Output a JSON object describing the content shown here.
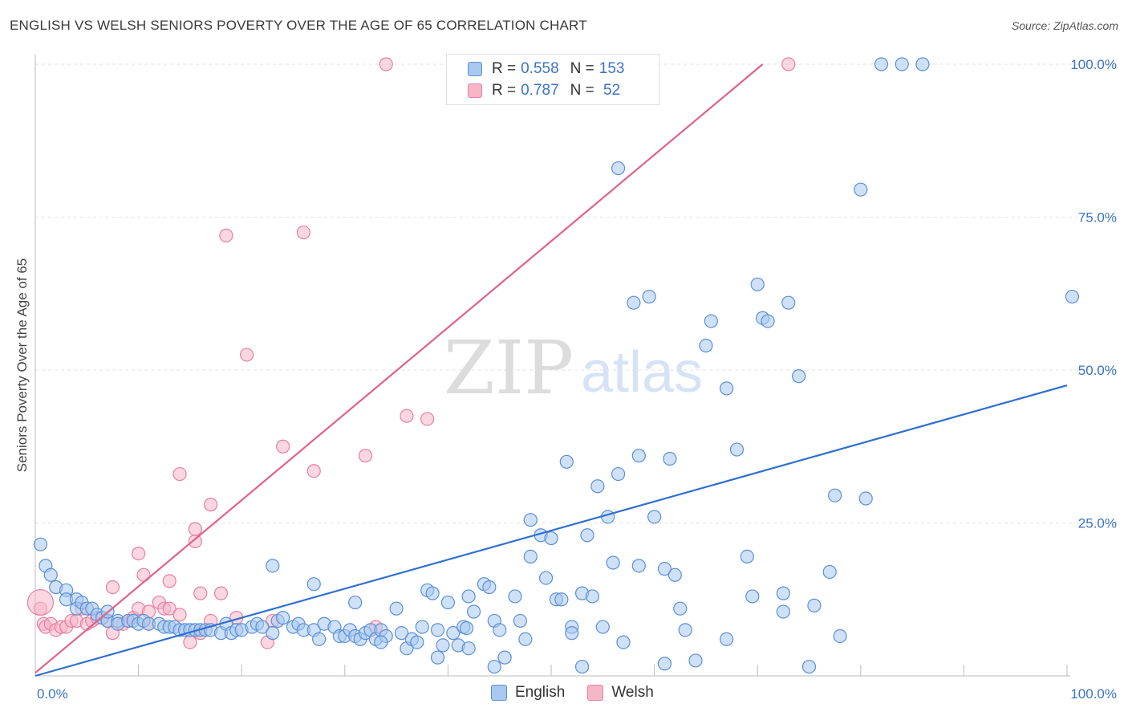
{
  "title": "ENGLISH VS WELSH SENIORS POVERTY OVER THE AGE OF 65 CORRELATION CHART",
  "source": "Source: ZipAtlas.com",
  "watermark": {
    "zip": "ZIP",
    "atlas": "atlas"
  },
  "legend": {
    "rows": [
      {
        "r_label": "R = ",
        "r_value": "0.558",
        "n_label": "N = ",
        "n_value": "153"
      },
      {
        "r_label": "R = ",
        "r_value": "0.787",
        "n_label": "N = ",
        "n_value": " 52"
      }
    ]
  },
  "bottom_legend": {
    "english": "English",
    "welsh": "Welsh"
  },
  "colors": {
    "english_fill": "#a8c8f0",
    "english_stroke": "#5b8fd6",
    "english_line": "#2f6fce",
    "welsh_fill": "#f7b6c8",
    "welsh_stroke": "#e87fa0",
    "welsh_line": "#e0628a",
    "tick_text": "#3b73c4",
    "grid": "#e2e2e2"
  },
  "chart_data": {
    "type": "scatter",
    "title": "ENGLISH VS WELSH SENIORS POVERTY OVER THE AGE OF 65 CORRELATION CHART",
    "xlabel": "",
    "ylabel": "Seniors Poverty Over the Age of 65",
    "xlim": [
      0,
      100
    ],
    "ylim": [
      0,
      100
    ],
    "x_tick_labels": [
      "0.0%",
      "100.0%"
    ],
    "y_ticks": [
      25,
      50,
      75,
      100
    ],
    "y_tick_labels": [
      "25.0%",
      "50.0%",
      "75.0%",
      "100.0%"
    ],
    "grid": true,
    "series": [
      {
        "name": "English",
        "trend": [
          [
            0,
            0
          ],
          [
            100,
            47.5
          ]
        ],
        "points": [
          [
            0.5,
            21.5
          ],
          [
            1,
            18
          ],
          [
            1.5,
            16.5
          ],
          [
            2,
            14.5
          ],
          [
            3,
            14
          ],
          [
            3,
            12.5
          ],
          [
            4,
            12.5
          ],
          [
            4,
            11
          ],
          [
            4.5,
            12
          ],
          [
            5,
            11
          ],
          [
            5.5,
            11
          ],
          [
            6,
            10
          ],
          [
            6.5,
            9.5
          ],
          [
            7,
            9
          ],
          [
            7,
            10.5
          ],
          [
            8,
            9
          ],
          [
            8,
            8.5
          ],
          [
            9,
            9
          ],
          [
            9.5,
            9
          ],
          [
            10,
            8.5
          ],
          [
            10.5,
            9
          ],
          [
            11,
            8.5
          ],
          [
            12,
            8.5
          ],
          [
            12.5,
            8
          ],
          [
            13,
            8
          ],
          [
            13.5,
            8
          ],
          [
            14,
            7.5
          ],
          [
            14.5,
            7.5
          ],
          [
            15,
            7.5
          ],
          [
            15.5,
            7.5
          ],
          [
            16,
            7.5
          ],
          [
            16.5,
            7.5
          ],
          [
            17,
            7.5
          ],
          [
            18,
            7
          ],
          [
            18.5,
            8.5
          ],
          [
            19,
            7
          ],
          [
            19.5,
            7.5
          ],
          [
            20,
            7.5
          ],
          [
            21,
            8
          ],
          [
            21.5,
            8.5
          ],
          [
            22,
            8
          ],
          [
            23,
            7
          ],
          [
            23.5,
            9
          ],
          [
            24,
            9.5
          ],
          [
            25,
            8
          ],
          [
            25.5,
            8.5
          ],
          [
            26,
            7.5
          ],
          [
            27,
            7.5
          ],
          [
            27.5,
            6
          ],
          [
            28,
            8.5
          ],
          [
            29,
            8
          ],
          [
            29.5,
            6.5
          ],
          [
            30,
            6.5
          ],
          [
            30.5,
            7.5
          ],
          [
            31,
            6.5
          ],
          [
            31.5,
            6
          ],
          [
            32,
            7
          ],
          [
            32.5,
            7.5
          ],
          [
            33,
            6
          ],
          [
            33.5,
            7.5
          ],
          [
            34,
            6.5
          ],
          [
            35,
            11
          ],
          [
            35.5,
            7
          ],
          [
            36,
            4.5
          ],
          [
            36.5,
            6
          ],
          [
            37,
            5.5
          ],
          [
            37.5,
            8
          ],
          [
            38,
            14
          ],
          [
            38.5,
            13.5
          ],
          [
            39,
            7.5
          ],
          [
            39.5,
            5
          ],
          [
            40,
            12
          ],
          [
            40.5,
            7
          ],
          [
            41,
            5
          ],
          [
            41.5,
            8
          ],
          [
            42,
            4.5
          ],
          [
            41.8,
            7.8
          ],
          [
            42,
            13
          ],
          [
            42.5,
            10.5
          ],
          [
            43.5,
            15
          ],
          [
            44,
            14.5
          ],
          [
            44.5,
            9
          ],
          [
            45,
            7.5
          ],
          [
            45.5,
            3
          ],
          [
            46.5,
            13
          ],
          [
            47,
            9
          ],
          [
            47.5,
            6
          ],
          [
            48,
            19.5
          ],
          [
            49,
            23
          ],
          [
            48,
            25.5
          ],
          [
            49.5,
            16
          ],
          [
            50,
            22.5
          ],
          [
            50.5,
            12.5
          ],
          [
            51,
            12.5
          ],
          [
            51.5,
            35
          ],
          [
            52,
            8
          ],
          [
            52,
            7
          ],
          [
            53,
            13.5
          ],
          [
            53.5,
            23
          ],
          [
            54,
            13
          ],
          [
            54.5,
            31
          ],
          [
            55,
            8
          ],
          [
            55.5,
            26
          ],
          [
            56,
            18.5
          ],
          [
            56.5,
            33
          ],
          [
            57,
            5.5
          ],
          [
            58,
            61
          ],
          [
            58.5,
            18
          ],
          [
            58.5,
            36
          ],
          [
            59.5,
            62
          ],
          [
            60,
            26
          ],
          [
            61,
            17.5
          ],
          [
            61.5,
            35.5
          ],
          [
            62,
            16.5
          ],
          [
            62.5,
            11
          ],
          [
            63,
            7.5
          ],
          [
            64,
            2.5
          ],
          [
            65,
            54
          ],
          [
            65.5,
            58
          ],
          [
            67,
            47
          ],
          [
            68,
            37
          ],
          [
            69,
            19.5
          ],
          [
            69.5,
            13
          ],
          [
            70,
            64
          ],
          [
            70.5,
            58.5
          ],
          [
            71,
            58
          ],
          [
            72.5,
            10.5
          ],
          [
            73,
            61
          ],
          [
            74,
            49
          ],
          [
            75,
            1.5
          ],
          [
            77,
            17
          ],
          [
            77.5,
            29.5
          ],
          [
            78,
            6.5
          ],
          [
            80,
            79.5
          ],
          [
            80.5,
            29
          ],
          [
            82,
            100
          ],
          [
            84,
            100
          ],
          [
            86,
            100
          ],
          [
            100.5,
            62
          ],
          [
            61,
            2
          ],
          [
            56.5,
            83
          ],
          [
            27,
            15
          ],
          [
            31,
            12
          ],
          [
            23,
            18
          ],
          [
            53,
            1.5
          ],
          [
            44.5,
            1.5
          ],
          [
            39,
            3
          ],
          [
            33.5,
            5.5
          ],
          [
            75.5,
            11.5
          ],
          [
            67,
            6
          ],
          [
            72.5,
            13.5
          ]
        ]
      },
      {
        "name": "Welsh",
        "trend": [
          [
            0,
            0.5
          ],
          [
            70.5,
            100
          ]
        ],
        "points": [
          [
            0.5,
            11
          ],
          [
            0.8,
            8.5
          ],
          [
            1,
            8
          ],
          [
            1.5,
            8.5
          ],
          [
            2,
            7.5
          ],
          [
            2.5,
            8
          ],
          [
            3,
            8
          ],
          [
            3.5,
            9
          ],
          [
            4,
            9
          ],
          [
            4.5,
            11
          ],
          [
            5,
            8.5
          ],
          [
            5.5,
            9
          ],
          [
            6,
            9.5
          ],
          [
            7,
            9
          ],
          [
            7.5,
            14.5
          ],
          [
            7.5,
            7
          ],
          [
            8.5,
            8.5
          ],
          [
            9,
            9
          ],
          [
            9.5,
            9.5
          ],
          [
            10,
            11
          ],
          [
            10,
            20
          ],
          [
            10.5,
            16.5
          ],
          [
            11,
            10.5
          ],
          [
            12,
            12
          ],
          [
            12.5,
            11
          ],
          [
            13,
            11
          ],
          [
            13,
            15.5
          ],
          [
            14,
            10
          ],
          [
            14,
            33
          ],
          [
            15,
            5.5
          ],
          [
            15.5,
            22
          ],
          [
            15.5,
            24
          ],
          [
            16,
            13.5
          ],
          [
            17,
            9
          ],
          [
            17,
            28
          ],
          [
            18,
            13.5
          ],
          [
            18.5,
            72
          ],
          [
            19.5,
            9.5
          ],
          [
            20.5,
            52.5
          ],
          [
            22.5,
            5.5
          ],
          [
            23,
            9
          ],
          [
            24,
            37.5
          ],
          [
            26,
            72.5
          ],
          [
            27,
            33.5
          ],
          [
            32,
            36
          ],
          [
            33,
            8
          ],
          [
            34,
            100
          ],
          [
            36,
            42.5
          ],
          [
            38,
            42
          ],
          [
            73,
            100
          ],
          [
            11,
            8.5
          ],
          [
            16,
            7
          ]
        ]
      }
    ]
  }
}
